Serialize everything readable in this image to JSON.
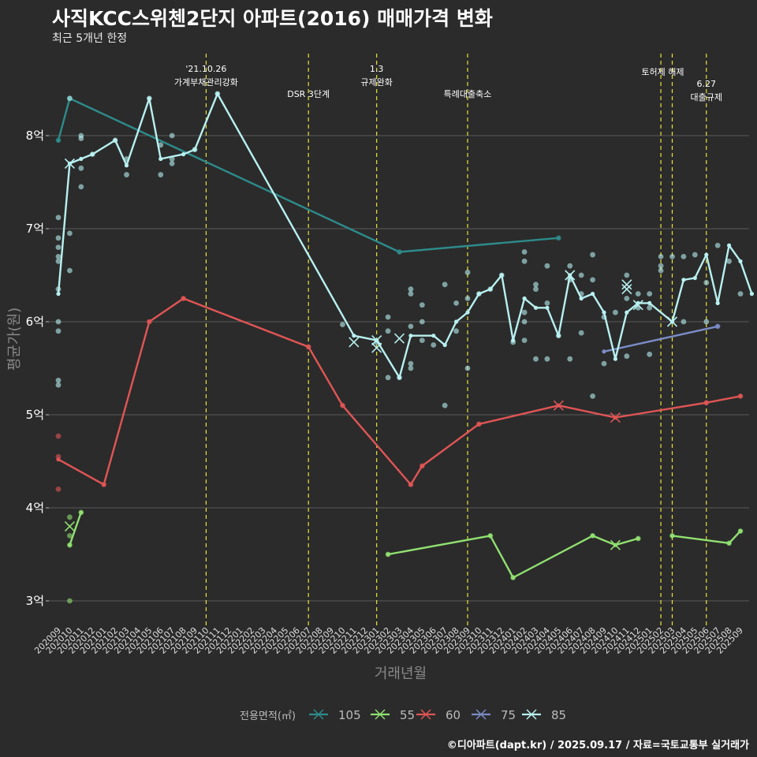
{
  "title": "사직KCC스위첸2단지 아파트(2016) 매매가격 변화",
  "subtitle": "최근 5개년 한정",
  "caption": "©디아파트(dapt.kr) / 2025.09.17 / 자료=국토교통부 실거래가",
  "colors": {
    "background": "#2b2b2b",
    "grid": "#5a5a5a",
    "event_line": "#e8e23a",
    "105": "#2e8b8b",
    "55": "#90e070",
    "60": "#e05555",
    "75": "#7b8cc6",
    "85": "#b8f0f0"
  },
  "chart_data": {
    "type": "line",
    "title": "사직KCC스위첸2단지 아파트(2016) 매매가격 변화",
    "subtitle": "최근 5개년 한정",
    "xlabel": "거래년월",
    "ylabel": "평균가(원)",
    "ylim": [
      2.7,
      8.9
    ],
    "yticks": [
      3,
      4,
      5,
      6,
      7,
      8
    ],
    "ytick_labels": [
      "3억",
      "4억",
      "5억",
      "6억",
      "7억",
      "8억"
    ],
    "grid": true,
    "legend": {
      "title": "전용면적(㎡)",
      "position": "bottom",
      "items": [
        "105",
        "55",
        "60",
        "75",
        "85"
      ]
    },
    "categories": [
      "202009",
      "202010",
      "202011",
      "202012",
      "202101",
      "202102",
      "202103",
      "202104",
      "202105",
      "202106",
      "202107",
      "202108",
      "202109",
      "202110",
      "202111",
      "202112",
      "202201",
      "202202",
      "202203",
      "202204",
      "202205",
      "202206",
      "202207",
      "202208",
      "202209",
      "202210",
      "202211",
      "202212",
      "202301",
      "202302",
      "202303",
      "202304",
      "202305",
      "202306",
      "202307",
      "202308",
      "202309",
      "202310",
      "202311",
      "202312",
      "202401",
      "202402",
      "202403",
      "202404",
      "202405",
      "202406",
      "202407",
      "202408",
      "202409",
      "202410",
      "202411",
      "202412",
      "202501",
      "202502",
      "202503",
      "202504",
      "202505",
      "202506",
      "202507",
      "202508",
      "202509"
    ],
    "events": [
      {
        "x": 13,
        "label": [
          "'21.10.26",
          "가계부채관리강화"
        ],
        "level": 0
      },
      {
        "x": 22,
        "label": [
          "DSR 3단계"
        ],
        "level": 1
      },
      {
        "x": 28,
        "label": [
          "1.3",
          "규제완화"
        ],
        "level": 0
      },
      {
        "x": 36,
        "label": [
          "특례대출축소"
        ],
        "level": 1
      },
      {
        "x": 53,
        "label": [],
        "level": 0
      },
      {
        "x": 54,
        "label": [
          "토허제 해제"
        ],
        "level": 0
      },
      {
        "x": 57,
        "label": [
          "6.27",
          "대출규제"
        ],
        "level": 2
      }
    ],
    "series": [
      {
        "name": "105",
        "line": [
          [
            0,
            7.95
          ],
          [
            1,
            8.4
          ],
          [
            30,
            6.75
          ],
          [
            44,
            6.9
          ]
        ],
        "points": [
          [
            0,
            7.95
          ],
          [
            1,
            8.4
          ],
          [
            30,
            6.75
          ],
          [
            44,
            6.9
          ]
        ],
        "crosses": []
      },
      {
        "name": "55",
        "line": [
          [
            1,
            3.6
          ],
          [
            2,
            3.95
          ]
        ],
        "line2": [
          [
            29,
            3.5
          ],
          [
            38,
            3.7
          ],
          [
            40,
            3.25
          ],
          [
            47,
            3.7
          ],
          [
            49,
            3.6
          ],
          [
            51,
            3.67
          ]
        ],
        "line3": [
          [
            54,
            3.7
          ],
          [
            59,
            3.62
          ],
          [
            60,
            3.75
          ]
        ],
        "points": [
          [
            1,
            3.9
          ],
          [
            1,
            3.7
          ],
          [
            1,
            3.6
          ],
          [
            1,
            3.0
          ],
          [
            2,
            3.95
          ],
          [
            29,
            3.5
          ],
          [
            38,
            3.7
          ],
          [
            40,
            3.25
          ],
          [
            47,
            3.7
          ],
          [
            51,
            3.67
          ],
          [
            54,
            3.7
          ],
          [
            59,
            3.62
          ],
          [
            60,
            3.75
          ]
        ],
        "crosses": [
          [
            1,
            3.8
          ],
          [
            49,
            3.6
          ]
        ]
      },
      {
        "name": "60",
        "line": [
          [
            0,
            4.52
          ],
          [
            4,
            4.25
          ],
          [
            8,
            6.0
          ],
          [
            11,
            6.25
          ],
          [
            22,
            5.73
          ],
          [
            25,
            5.1
          ],
          [
            31,
            4.25
          ],
          [
            32,
            4.45
          ],
          [
            37,
            4.9
          ],
          [
            44,
            5.1
          ],
          [
            49,
            4.97
          ],
          [
            57,
            5.13
          ],
          [
            60,
            5.2
          ]
        ],
        "points": [
          [
            0,
            4.77
          ],
          [
            0,
            4.55
          ],
          [
            0,
            4.2
          ],
          [
            4,
            4.25
          ],
          [
            8,
            6.0
          ],
          [
            11,
            6.25
          ],
          [
            22,
            5.73
          ],
          [
            25,
            5.1
          ],
          [
            31,
            4.25
          ],
          [
            32,
            4.45
          ],
          [
            37,
            4.9
          ],
          [
            57,
            5.13
          ],
          [
            60,
            5.2
          ]
        ],
        "crosses": [
          [
            44,
            5.1
          ],
          [
            49,
            4.97
          ]
        ]
      },
      {
        "name": "75",
        "line": [
          [
            48,
            5.68
          ],
          [
            58,
            5.95
          ]
        ],
        "points": [
          [
            58,
            5.95
          ]
        ],
        "crosses": []
      },
      {
        "name": "85",
        "line": [
          [
            0,
            6.3
          ],
          [
            1,
            7.7
          ],
          [
            2,
            7.75
          ],
          [
            3,
            7.8
          ],
          [
            5,
            7.95
          ],
          [
            6,
            7.68
          ],
          [
            8,
            8.4
          ],
          [
            9,
            7.75
          ],
          [
            11,
            7.8
          ],
          [
            12,
            7.85
          ],
          [
            14,
            8.45
          ],
          [
            26,
            5.85
          ],
          [
            28,
            5.8
          ],
          [
            30,
            5.4
          ],
          [
            31,
            5.85
          ],
          [
            33,
            5.85
          ],
          [
            34,
            5.75
          ],
          [
            35,
            6.0
          ],
          [
            36,
            6.1
          ],
          [
            37,
            6.3
          ],
          [
            38,
            6.35
          ],
          [
            39,
            6.5
          ],
          [
            40,
            5.8
          ],
          [
            41,
            6.25
          ],
          [
            42,
            6.15
          ],
          [
            43,
            6.15
          ],
          [
            44,
            5.85
          ],
          [
            45,
            6.5
          ],
          [
            46,
            6.25
          ],
          [
            47,
            6.3
          ],
          [
            48,
            6.1
          ],
          [
            49,
            5.6
          ],
          [
            50,
            6.1
          ],
          [
            51,
            6.2
          ],
          [
            52,
            6.2
          ],
          [
            54,
            6.0
          ],
          [
            55,
            6.45
          ],
          [
            56,
            6.47
          ],
          [
            57,
            6.72
          ],
          [
            58,
            6.2
          ],
          [
            59,
            6.82
          ],
          [
            60,
            6.65
          ],
          [
            61,
            6.3
          ]
        ],
        "points": [
          [
            0,
            7.12
          ],
          [
            0,
            6.9
          ],
          [
            0,
            6.8
          ],
          [
            0,
            6.7
          ],
          [
            0,
            6.65
          ],
          [
            0,
            6.35
          ],
          [
            0,
            6.0
          ],
          [
            0,
            5.9
          ],
          [
            0,
            5.37
          ],
          [
            0,
            5.32
          ],
          [
            1,
            8.4
          ],
          [
            1,
            6.95
          ],
          [
            1,
            6.55
          ],
          [
            2,
            8.0
          ],
          [
            2,
            7.97
          ],
          [
            2,
            7.65
          ],
          [
            2,
            7.45
          ],
          [
            3,
            7.8
          ],
          [
            5,
            7.95
          ],
          [
            6,
            7.75
          ],
          [
            6,
            7.58
          ],
          [
            8,
            8.4
          ],
          [
            9,
            7.9
          ],
          [
            9,
            7.58
          ],
          [
            10,
            8.0
          ],
          [
            10,
            7.75
          ],
          [
            10,
            7.7
          ],
          [
            12,
            7.85
          ],
          [
            14,
            8.45
          ],
          [
            25,
            5.97
          ],
          [
            28,
            5.78
          ],
          [
            29,
            6.05
          ],
          [
            29,
            5.9
          ],
          [
            29,
            5.4
          ],
          [
            30,
            5.4
          ],
          [
            31,
            6.35
          ],
          [
            31,
            6.3
          ],
          [
            31,
            5.95
          ],
          [
            31,
            5.55
          ],
          [
            31,
            5.5
          ],
          [
            32,
            6.18
          ],
          [
            32,
            6.0
          ],
          [
            32,
            5.8
          ],
          [
            33,
            5.75
          ],
          [
            34,
            6.4
          ],
          [
            34,
            5.1
          ],
          [
            35,
            6.2
          ],
          [
            35,
            5.9
          ],
          [
            36,
            6.25
          ],
          [
            36,
            5.5
          ],
          [
            36,
            6.53
          ],
          [
            37,
            6.3
          ],
          [
            38,
            6.35
          ],
          [
            39,
            6.5
          ],
          [
            40,
            5.78
          ],
          [
            41,
            6.75
          ],
          [
            41,
            6.65
          ],
          [
            41,
            6.1
          ],
          [
            41,
            6.0
          ],
          [
            41,
            5.8
          ],
          [
            42,
            6.4
          ],
          [
            42,
            6.35
          ],
          [
            42,
            5.6
          ],
          [
            43,
            6.6
          ],
          [
            43,
            6.2
          ],
          [
            43,
            5.6
          ],
          [
            44,
            5.85
          ],
          [
            45,
            6.6
          ],
          [
            45,
            6.45
          ],
          [
            45,
            5.6
          ],
          [
            46,
            6.5
          ],
          [
            46,
            6.3
          ],
          [
            46,
            5.88
          ],
          [
            47,
            6.72
          ],
          [
            47,
            6.45
          ],
          [
            47,
            5.2
          ],
          [
            48,
            6.05
          ],
          [
            48,
            5.55
          ],
          [
            49,
            6.1
          ],
          [
            50,
            6.5
          ],
          [
            50,
            6.25
          ],
          [
            50,
            5.63
          ],
          [
            51,
            6.3
          ],
          [
            51,
            6.15
          ],
          [
            52,
            6.3
          ],
          [
            52,
            6.15
          ],
          [
            52,
            5.65
          ],
          [
            53,
            6.7
          ],
          [
            53,
            6.6
          ],
          [
            53,
            6.55
          ],
          [
            54,
            6.7
          ],
          [
            55,
            6.7
          ],
          [
            55,
            6.0
          ],
          [
            56,
            6.72
          ],
          [
            57,
            6.42
          ],
          [
            57,
            6.0
          ],
          [
            58,
            6.82
          ],
          [
            59,
            6.65
          ],
          [
            60,
            6.3
          ]
        ],
        "crosses": [
          [
            1,
            7.7
          ],
          [
            26,
            5.78
          ],
          [
            28,
            5.8
          ],
          [
            28,
            5.72
          ],
          [
            30,
            5.82
          ],
          [
            45,
            6.5
          ],
          [
            50,
            6.4
          ],
          [
            50,
            6.35
          ],
          [
            51,
            6.18
          ],
          [
            54,
            6.0
          ]
        ]
      }
    ]
  }
}
